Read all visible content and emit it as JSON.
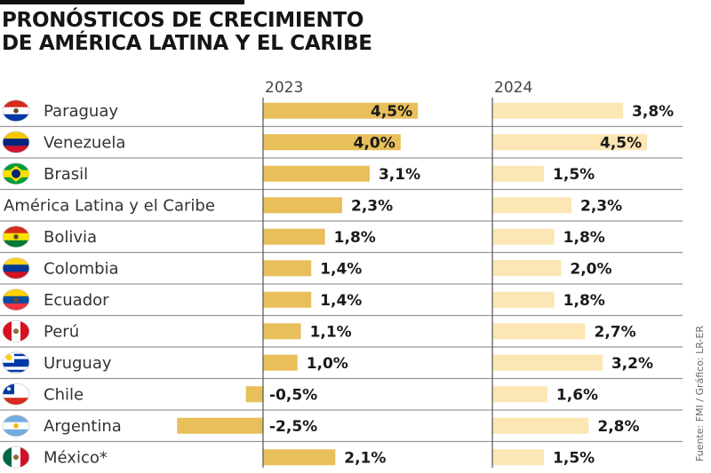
{
  "header": {
    "title_line1": "PRONÓSTICOS DE CRECIMIENTO",
    "title_line2": "DE AMÉRICA LATINA Y EL CARIBE"
  },
  "source": "Fuente: FMI / Gráfico: LR-ER",
  "colors": {
    "bar_2023": "#e8bf5a",
    "bar_2024": "#fbe6b4",
    "gridline": "#9a9a9a",
    "axis": "#555555"
  },
  "chart_data": {
    "type": "bar",
    "orientation": "horizontal",
    "title": "PRONÓSTICOS DE CRECIMIENTO DE AMÉRICA LATINA Y EL CARIBE",
    "unit": "%",
    "categories": [
      "Paraguay",
      "Venezuela",
      "Brasil",
      "América Latina y el Caribe",
      "Bolivia",
      "Colombia",
      "Ecuador",
      "Perú",
      "Uruguay",
      "Chile",
      "Argentina",
      "México*"
    ],
    "flags": [
      "paraguay-flag",
      "venezuela-flag",
      "brasil-flag",
      null,
      "bolivia-flag",
      "colombia-flag",
      "ecuador-flag",
      "peru-flag",
      "uruguay-flag",
      "chile-flag",
      "argentina-flag",
      "mexico-flag"
    ],
    "series": [
      {
        "name": "2023",
        "values": [
          4.5,
          4.0,
          3.1,
          2.3,
          1.8,
          1.4,
          1.4,
          1.1,
          1.0,
          -0.5,
          -2.5,
          2.1
        ],
        "labels": [
          "4,5%",
          "4,0%",
          "3,1%",
          "2,3%",
          "1,8%",
          "1,4%",
          "1,4%",
          "1,1%",
          "1,0%",
          "-0,5%",
          "-2,5%",
          "2,1%"
        ]
      },
      {
        "name": "2024",
        "values": [
          3.8,
          4.5,
          1.5,
          2.3,
          1.8,
          2.0,
          1.8,
          2.7,
          3.2,
          1.6,
          2.8,
          1.5
        ],
        "labels": [
          "3,8%",
          "4,5%",
          "1,5%",
          "2,3%",
          "1,8%",
          "2,0%",
          "1,8%",
          "2,7%",
          "3,2%",
          "1,6%",
          "2,8%",
          "1,5%"
        ]
      }
    ],
    "xlabel": "",
    "ylabel": "",
    "grid": "horizontal separators between rows",
    "legend": "none (year headers above each column)"
  }
}
